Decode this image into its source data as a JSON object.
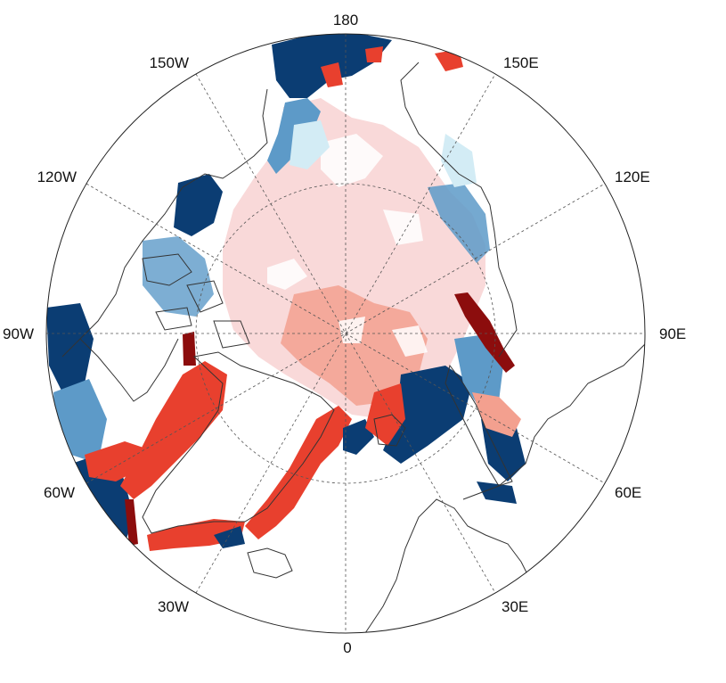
{
  "map": {
    "projection": "north-polar-stereographic",
    "longitude_labels": {
      "top": "180",
      "lon150E": "150E",
      "lon120E": "120E",
      "lon90E": "90E",
      "lon60E": "60E",
      "lon30E": "30E",
      "bottom": "0",
      "lon30W": "30W",
      "lon60W": "60W",
      "lon90W": "90W",
      "lon120W": "120W",
      "lon150W": "150W"
    },
    "colors": {
      "pale_pink": "#f9d9d9",
      "salmon": "#f3a08f",
      "red": "#e8402e",
      "dark_red": "#8c0d0d",
      "light_blue": "#d3ecf5",
      "mid_blue": "#5d9ac8",
      "dark_blue": "#0b3d73",
      "coast": "#333333",
      "graticule": "#555555"
    }
  }
}
